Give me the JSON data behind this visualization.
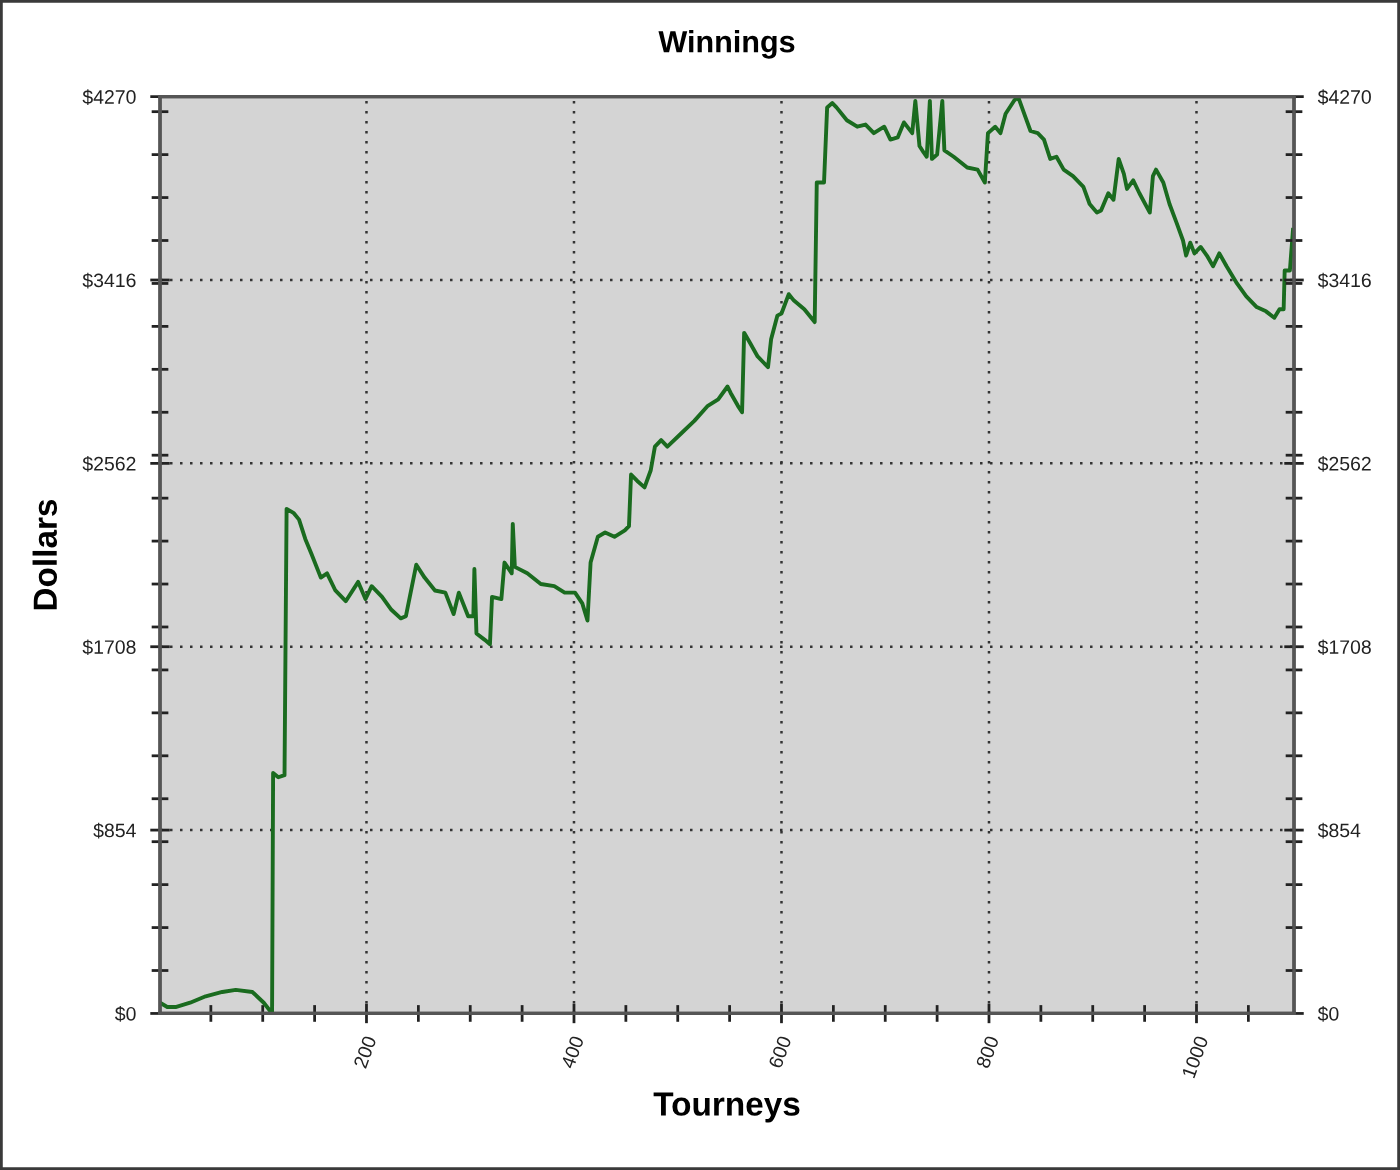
{
  "chart_data": {
    "type": "line",
    "title": "Winnings",
    "xlabel": "Tourneys",
    "ylabel": "Dollars",
    "x": [
      1,
      8,
      16,
      30,
      45,
      61,
      74,
      90,
      101,
      109,
      110,
      115,
      121,
      123,
      130,
      135,
      141,
      147,
      156,
      162,
      170,
      180,
      192,
      199,
      205,
      215,
      224,
      233,
      238,
      248,
      256,
      266,
      276,
      284,
      289,
      298,
      303,
      304,
      306,
      314,
      319,
      321,
      330,
      333,
      340,
      341,
      343,
      355,
      368,
      381,
      391,
      401,
      408,
      413,
      416,
      423,
      430,
      439,
      449,
      453,
      455,
      461,
      468,
      474,
      478,
      484,
      490,
      503,
      516,
      529,
      539,
      548,
      551,
      558,
      562,
      564,
      570,
      577,
      587,
      590,
      596,
      600,
      607,
      612,
      622,
      632,
      634,
      641,
      644,
      649,
      653,
      663,
      673,
      681,
      689,
      699,
      705,
      712,
      718,
      726,
      729,
      733,
      737,
      740,
      743,
      745,
      750,
      755,
      757,
      766,
      779,
      789,
      796,
      799,
      806,
      811,
      816,
      824,
      828,
      834,
      840,
      847,
      853,
      859,
      865,
      872,
      881,
      891,
      897,
      904,
      908,
      915,
      920,
      925,
      930,
      933,
      939,
      945,
      955,
      958,
      961,
      968,
      974,
      981,
      987,
      990,
      994,
      998,
      1004,
      1010,
      1016,
      1022,
      1029,
      1039,
      1048,
      1058,
      1067,
      1075,
      1080,
      1084,
      1085,
      1090,
      1093
    ],
    "series": [
      {
        "color": "#1a6b1f",
        "values": [
          50,
          30,
          30,
          50,
          80,
          100,
          110,
          100,
          50,
          0,
          1120,
          1100,
          1110,
          2350,
          2330,
          2300,
          2210,
          2140,
          2030,
          2050,
          1970,
          1920,
          2010,
          1930,
          1990,
          1940,
          1880,
          1840,
          1850,
          2090,
          2030,
          1970,
          1960,
          1860,
          1960,
          1850,
          1850,
          2070,
          1770,
          1740,
          1720,
          1940,
          1930,
          2100,
          2050,
          2280,
          2080,
          2050,
          2000,
          1990,
          1960,
          1960,
          1910,
          1830,
          2100,
          2220,
          2240,
          2220,
          2250,
          2270,
          2510,
          2480,
          2450,
          2530,
          2640,
          2670,
          2640,
          2700,
          2760,
          2830,
          2860,
          2920,
          2890,
          2830,
          2800,
          3170,
          3120,
          3060,
          3010,
          3140,
          3250,
          3260,
          3350,
          3320,
          3280,
          3220,
          3870,
          3870,
          4220,
          4240,
          4220,
          4160,
          4130,
          4140,
          4100,
          4130,
          4070,
          4080,
          4150,
          4100,
          4250,
          4040,
          4010,
          3990,
          4250,
          3980,
          4000,
          4250,
          4020,
          3990,
          3940,
          3930,
          3870,
          4100,
          4130,
          4100,
          4190,
          4250,
          4270,
          4190,
          4110,
          4100,
          4070,
          3980,
          3990,
          3930,
          3900,
          3850,
          3770,
          3730,
          3740,
          3820,
          3790,
          3980,
          3910,
          3840,
          3880,
          3820,
          3730,
          3900,
          3930,
          3870,
          3770,
          3680,
          3600,
          3530,
          3590,
          3540,
          3570,
          3530,
          3480,
          3540,
          3480,
          3400,
          3340,
          3290,
          3270,
          3240,
          3280,
          3280,
          3460,
          3460,
          3650
        ]
      }
    ],
    "xlim": [
      1,
      1094
    ],
    "xticks": [
      {
        "value": 50,
        "label": null
      },
      {
        "value": 100,
        "label": null
      },
      {
        "value": 150,
        "label": null
      },
      200,
      {
        "value": 250,
        "label": null
      },
      {
        "value": 300,
        "label": null
      },
      {
        "value": 350,
        "label": null
      },
      400,
      {
        "value": 450,
        "label": null
      },
      {
        "value": 500,
        "label": null
      },
      {
        "value": 550,
        "label": null
      },
      600,
      {
        "value": 650,
        "label": null
      },
      {
        "value": 700,
        "label": null
      },
      {
        "value": 750,
        "label": null
      },
      800,
      {
        "value": 850,
        "label": null
      },
      {
        "value": 900,
        "label": null
      },
      {
        "value": 950,
        "label": null
      },
      1000,
      {
        "value": 1050,
        "label": null
      }
    ],
    "ylim": [
      0,
      4270
    ],
    "yticks": [
      {
        "value": 0,
        "label": "$0"
      },
      {
        "value": 200,
        "label": null
      },
      {
        "value": 400,
        "label": null
      },
      {
        "value": 600,
        "label": null
      },
      {
        "value": 800,
        "label": null
      },
      {
        "value": 854,
        "label": "$854"
      },
      {
        "value": 1000,
        "label": null
      },
      {
        "value": 1200,
        "label": null
      },
      {
        "value": 1400,
        "label": null
      },
      {
        "value": 1600,
        "label": null
      },
      {
        "value": 1708,
        "label": "$1708"
      },
      {
        "value": 1800,
        "label": null
      },
      {
        "value": 2000,
        "label": null
      },
      {
        "value": 2200,
        "label": null
      },
      {
        "value": 2400,
        "label": null
      },
      {
        "value": 2562,
        "label": "$2562"
      },
      {
        "value": 2600,
        "label": null
      },
      {
        "value": 2800,
        "label": null
      },
      {
        "value": 3000,
        "label": null
      },
      {
        "value": 3200,
        "label": null
      },
      {
        "value": 3400,
        "label": null
      },
      {
        "value": 3416,
        "label": "$3416"
      },
      {
        "value": 3600,
        "label": null
      },
      {
        "value": 3800,
        "label": null
      },
      {
        "value": 4000,
        "label": null
      },
      {
        "value": 4200,
        "label": null
      },
      {
        "value": 4270,
        "label": "$4270"
      }
    ],
    "y2lim": [
      0,
      4270
    ],
    "y2ticks": [
      {
        "value": 0,
        "label": "$0"
      },
      {
        "value": 200,
        "label": null
      },
      {
        "value": 400,
        "label": null
      },
      {
        "value": 600,
        "label": null
      },
      {
        "value": 800,
        "label": null
      },
      {
        "value": 854,
        "label": "$854"
      },
      {
        "value": 1000,
        "label": null
      },
      {
        "value": 1200,
        "label": null
      },
      {
        "value": 1400,
        "label": null
      },
      {
        "value": 1600,
        "label": null
      },
      {
        "value": 1708,
        "label": "$1708"
      },
      {
        "value": 1800,
        "label": null
      },
      {
        "value": 2000,
        "label": null
      },
      {
        "value": 2200,
        "label": null
      },
      {
        "value": 2400,
        "label": null
      },
      {
        "value": 2562,
        "label": "$2562"
      },
      {
        "value": 2600,
        "label": null
      },
      {
        "value": 2800,
        "label": null
      },
      {
        "value": 3000,
        "label": null
      },
      {
        "value": 3200,
        "label": null
      },
      {
        "value": 3400,
        "label": null
      },
      {
        "value": 3416,
        "label": "$3416"
      },
      {
        "value": 3600,
        "label": null
      },
      {
        "value": 3800,
        "label": null
      },
      {
        "value": 4000,
        "label": null
      },
      {
        "value": 4200,
        "label": null
      },
      {
        "value": 4270,
        "label": "$4270"
      }
    ],
    "grid": true,
    "line_style": "solid"
  }
}
